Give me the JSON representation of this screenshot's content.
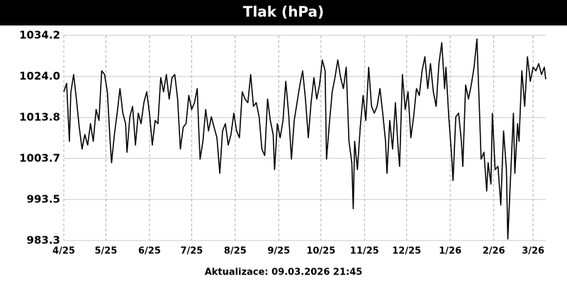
{
  "chart_data": {
    "type": "line",
    "title": "Tlak (hPa)",
    "footer": "Aktualizace: 09.03.2026 21:45",
    "x": [
      0,
      2,
      4,
      5,
      7,
      9,
      11,
      13,
      15,
      17,
      19,
      21,
      23,
      25,
      27,
      29,
      31,
      33,
      34,
      36,
      38,
      40,
      42,
      44,
      45,
      47,
      49,
      51,
      53,
      55,
      57,
      59,
      61,
      63,
      65,
      67,
      69,
      71,
      73,
      75,
      77,
      79,
      81,
      83,
      85,
      87,
      89,
      91,
      93,
      95,
      96,
      97,
      99,
      101,
      103,
      105,
      107,
      109,
      111,
      113,
      115,
      117,
      119,
      121,
      123,
      125,
      127,
      129,
      131,
      133,
      135,
      137,
      139,
      141,
      143,
      145,
      147,
      149,
      150,
      152,
      154,
      156,
      158,
      160,
      162,
      164,
      166,
      168,
      170,
      172,
      174,
      176,
      178,
      180,
      182,
      184,
      186,
      187,
      189,
      191,
      193,
      195,
      197,
      199,
      201,
      203,
      205,
      206,
      207,
      209,
      211,
      213,
      215,
      217,
      219,
      221,
      223,
      225,
      227,
      229,
      230,
      232,
      234,
      236,
      238,
      239,
      241,
      243,
      245,
      247,
      249,
      251,
      253,
      255,
      257,
      259,
      261,
      263,
      265,
      267,
      269,
      271,
      272,
      274,
      276,
      277,
      279,
      281,
      283,
      284,
      286,
      288,
      290,
      292,
      294,
      296,
      297,
      299,
      301,
      302,
      304,
      305,
      307,
      309,
      311,
      313,
      315,
      316,
      318,
      320,
      321,
      323,
      324,
      326,
      328,
      330,
      332,
      334,
      336,
      338,
      340,
      342,
      343
    ],
    "series": [
      {
        "name": "Tlak",
        "color": "#000000",
        "values": [
          1020.2,
          1022.3,
          1007.9,
          1020,
          1024.5,
          1018.4,
          1011.4,
          1006,
          1009.6,
          1007,
          1012.3,
          1007.9,
          1015.8,
          1013.1,
          1025.4,
          1024.5,
          1020.2,
          1007.9,
          1002.6,
          1009.6,
          1014.9,
          1021,
          1014.9,
          1012.3,
          1005.2,
          1014,
          1016.6,
          1007,
          1014.9,
          1012.3,
          1017.5,
          1020.2,
          1014.9,
          1007,
          1013.1,
          1012.3,
          1023.7,
          1020.2,
          1024.5,
          1018.4,
          1023.7,
          1024.5,
          1018.4,
          1006,
          1011.4,
          1012.3,
          1019.3,
          1015.8,
          1017.5,
          1021,
          1011.4,
          1003.5,
          1007.9,
          1015.8,
          1010.5,
          1014,
          1011.4,
          1008.8,
          1000,
          1010.5,
          1012.3,
          1007,
          1009.6,
          1014.9,
          1010.5,
          1008.8,
          1020.2,
          1018.4,
          1017.5,
          1024.5,
          1016.6,
          1017.5,
          1014,
          1006,
          1004.4,
          1018.4,
          1013.1,
          1009.6,
          1000.9,
          1012.3,
          1008.8,
          1013.1,
          1022.8,
          1014.9,
          1003.5,
          1013.1,
          1017.5,
          1021.9,
          1025.4,
          1018.4,
          1008.8,
          1017.5,
          1023.7,
          1018.4,
          1021.9,
          1028.1,
          1025.4,
          1003.5,
          1012.3,
          1020.2,
          1023.7,
          1028.1,
          1023.7,
          1021,
          1026.3,
          1007.9,
          1002.6,
          991.2,
          1007.9,
          1000.9,
          1011.4,
          1019.3,
          1013.1,
          1026.3,
          1016.6,
          1014.9,
          1016.6,
          1021,
          1014.9,
          1007.9,
          1000,
          1013.1,
          1006,
          1017.5,
          1006,
          1001.7,
          1024.5,
          1015.8,
          1020.2,
          1008.8,
          1014,
          1021,
          1019.3,
          1025.4,
          1028.9,
          1021,
          1027.2,
          1020.2,
          1016.6,
          1027.2,
          1032.4,
          1021,
          1026.3,
          1014,
          1004.4,
          998.2,
          1014,
          1014.9,
          1007.9,
          1001.7,
          1021.9,
          1018.4,
          1021.9,
          1026.3,
          1033.3,
          1014,
          1003.5,
          1005.2,
          995.6,
          1002.6,
          997.3,
          1014.9,
          1000.9,
          1001.7,
          992.1,
          1010.5,
          1000.9,
          983.7,
          999.1,
          1014.9,
          1000,
          1012.3,
          1007.9,
          1025.4,
          1016.6,
          1028.9,
          1022.8,
          1026.3,
          1025.4,
          1027.2,
          1024.5,
          1026.3,
          1023.3
        ]
      }
    ],
    "xlim": [
      0,
      343
    ],
    "xticks": [
      {
        "value": 0,
        "label": "4/25"
      },
      {
        "value": 30,
        "label": "5/25"
      },
      {
        "value": 61,
        "label": "6/25"
      },
      {
        "value": 91,
        "label": "7/25"
      },
      {
        "value": 122,
        "label": "8/25"
      },
      {
        "value": 153,
        "label": "9/25"
      },
      {
        "value": 183,
        "label": "10/25"
      },
      {
        "value": 214,
        "label": "11/25"
      },
      {
        "value": 244,
        "label": "12/25"
      },
      {
        "value": 275,
        "label": "1/26"
      },
      {
        "value": 306,
        "label": "2/26"
      },
      {
        "value": 334,
        "label": "3/26"
      }
    ],
    "ylim": [
      983.3,
      1034.2
    ],
    "yticks": [
      983.3,
      993.5,
      1003.7,
      1013.8,
      {
        "value": 1024.0,
        "label": "1024.0"
      },
      1034.2
    ],
    "grid": true
  }
}
